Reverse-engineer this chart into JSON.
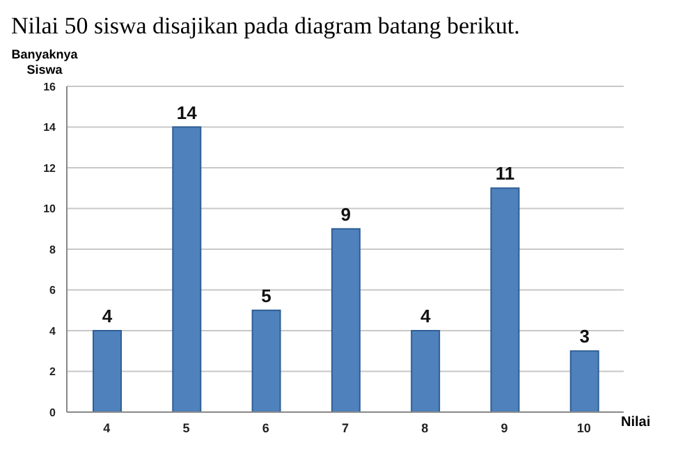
{
  "chart_data": {
    "type": "bar",
    "title": "Nilai 50 siswa disajikan pada diagram batang berikut.",
    "xlabel": "Nilai",
    "ylabel": "Banyaknya Siswa",
    "categories": [
      "4",
      "5",
      "6",
      "7",
      "8",
      "9",
      "10"
    ],
    "values": [
      4,
      14,
      5,
      9,
      4,
      11,
      3
    ],
    "color": "#4f81bd",
    "ylim": [
      0,
      16
    ],
    "yticks": [
      0,
      2,
      4,
      6,
      8,
      10,
      12,
      14,
      16
    ],
    "grid": "y",
    "data_labels": true
  }
}
